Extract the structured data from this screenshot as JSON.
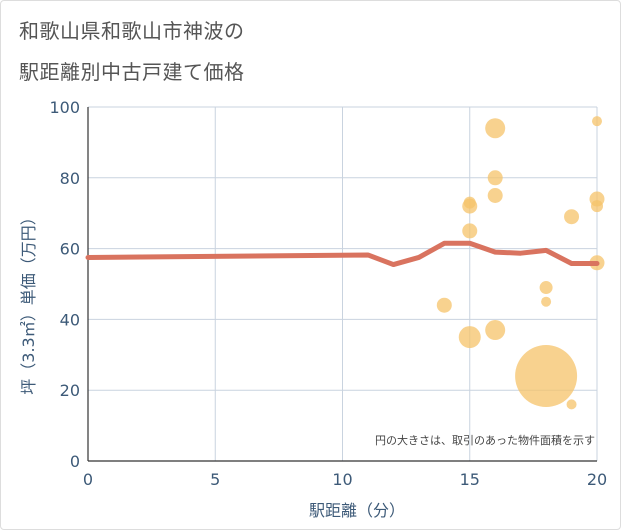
{
  "title_line1": "和歌山県和歌山市神波の",
  "title_line2": "駅距離別中古戸建て価格",
  "chart_data": {
    "type": "scatter",
    "title": "和歌山県和歌山市神波の駅距離別中古戸建て価格",
    "xlabel": "駅距離（分）",
    "ylabel": "坪（3.3㎡）単価（万円）",
    "xlim": [
      0,
      20
    ],
    "ylim": [
      0,
      100
    ],
    "x_ticks": [
      0,
      5,
      10,
      15,
      20
    ],
    "y_ticks": [
      0,
      20,
      40,
      60,
      80,
      100
    ],
    "grid": true,
    "annotation": "円の大きさは、取引のあった物件面積を示す",
    "trend_line": {
      "name": "trend",
      "color": "#d9735f",
      "points": [
        [
          0,
          57.5
        ],
        [
          11,
          58.2
        ],
        [
          12,
          55.5
        ],
        [
          13,
          57.5
        ],
        [
          14,
          61.5
        ],
        [
          15,
          61.5
        ],
        [
          16,
          59
        ],
        [
          17,
          58.7
        ],
        [
          18,
          59.5
        ],
        [
          19,
          55.8
        ],
        [
          20,
          55.8
        ]
      ]
    },
    "bubble_color": "#f5c36a",
    "bubbles": [
      {
        "x": 14,
        "y": 44,
        "size": 1.5
      },
      {
        "x": 15,
        "y": 73,
        "size": 1.2
      },
      {
        "x": 15,
        "y": 72,
        "size": 1.5
      },
      {
        "x": 15,
        "y": 65,
        "size": 1.5
      },
      {
        "x": 15,
        "y": 35,
        "size": 2.2
      },
      {
        "x": 16,
        "y": 94,
        "size": 2.0
      },
      {
        "x": 16,
        "y": 80,
        "size": 1.5
      },
      {
        "x": 16,
        "y": 75,
        "size": 1.5
      },
      {
        "x": 16,
        "y": 37,
        "size": 2.0
      },
      {
        "x": 18,
        "y": 49,
        "size": 1.3
      },
      {
        "x": 18,
        "y": 45,
        "size": 1.0
      },
      {
        "x": 18,
        "y": 24,
        "size": 6.2
      },
      {
        "x": 19,
        "y": 69,
        "size": 1.5
      },
      {
        "x": 19,
        "y": 16,
        "size": 1.0
      },
      {
        "x": 20,
        "y": 96,
        "size": 1.0
      },
      {
        "x": 20,
        "y": 74,
        "size": 1.5
      },
      {
        "x": 20,
        "y": 72,
        "size": 1.2
      },
      {
        "x": 20,
        "y": 56,
        "size": 1.5
      }
    ]
  }
}
